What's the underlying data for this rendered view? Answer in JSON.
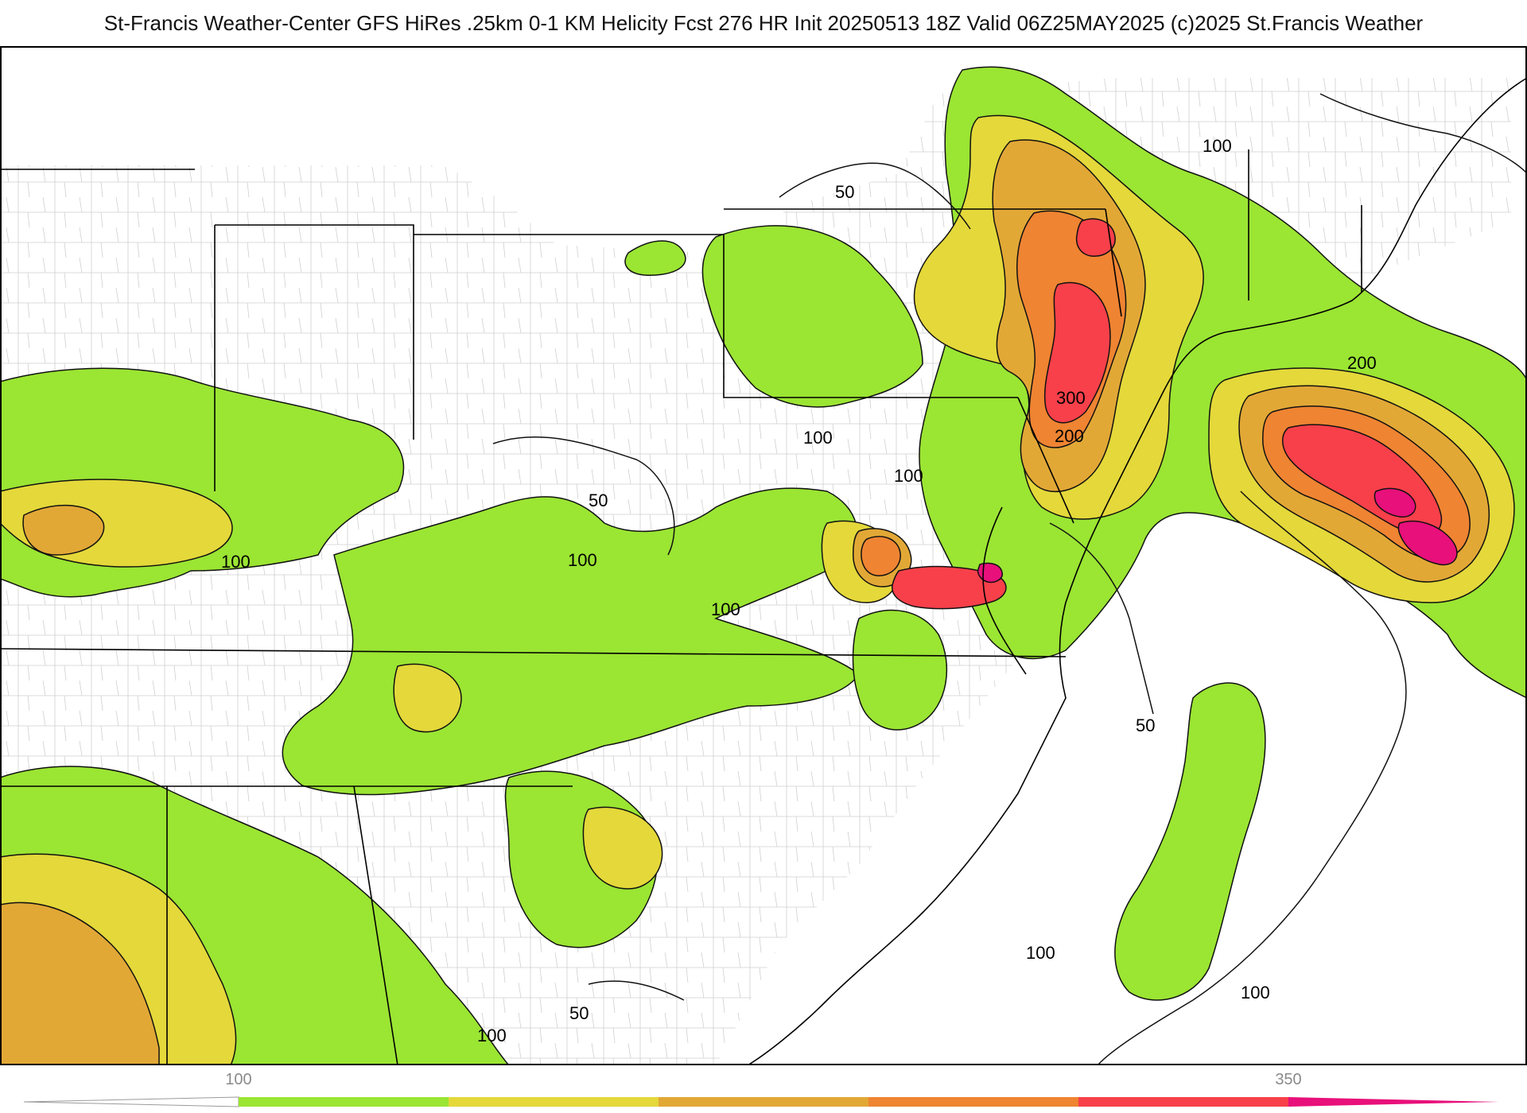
{
  "title": "St-Francis Weather-Center GFS HiRes .25km 0-1 KM Helicity Fcst 276 HR Init 20250513 18Z  Valid 06Z25MAY2025    (c)2025 St.Francis Weather",
  "colors": {
    "band_100": "#9be533",
    "band_150": "#e4d83a",
    "band_200": "#e2a836",
    "band_250": "#ef8432",
    "band_300": "#f7404a",
    "band_350": "#e8107a",
    "contour": "#111111",
    "boundary": "#000000",
    "county": "#bdbdbd"
  },
  "contour_labels": [
    "50",
    "100",
    "100",
    "100",
    "50",
    "100",
    "100",
    "100",
    "300",
    "200",
    "200",
    "100",
    "50",
    "100",
    "50",
    "100"
  ],
  "legend": {
    "ticks": [
      "100",
      "350"
    ],
    "bands": [
      "#9be533",
      "#e4d83a",
      "#e2a836",
      "#ef8432",
      "#f7404a",
      "#e8107a"
    ]
  }
}
